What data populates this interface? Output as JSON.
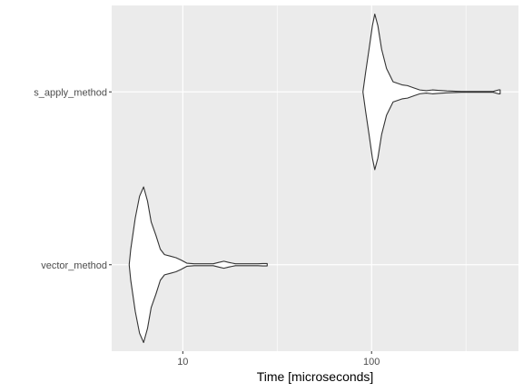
{
  "chart_data": {
    "type": "violin",
    "orientation": "horizontal",
    "xlabel": "Time [microseconds]",
    "ylabel": "",
    "x_scale": "log10",
    "xlim": [
      4.2,
      600
    ],
    "x_ticks": [
      {
        "value": 10,
        "label": "10"
      },
      {
        "value": 100,
        "label": "100"
      }
    ],
    "x_minor_ticks": [
      3.1623,
      31.623,
      316.23
    ],
    "categories": [
      "vector_method",
      "s_apply_method"
    ],
    "grid": true,
    "colors": {
      "panel": "#ebebeb",
      "grid": "#ffffff",
      "violin_fill": "#ffffff",
      "violin_stroke": "#333333"
    },
    "violins": [
      {
        "category": "vector_method",
        "min": 5.2,
        "max": 28,
        "density": [
          [
            5.2,
            0.0
          ],
          [
            5.3,
            0.2
          ],
          [
            5.6,
            0.6
          ],
          [
            5.9,
            0.88
          ],
          [
            6.2,
            1.0
          ],
          [
            6.5,
            0.82
          ],
          [
            6.8,
            0.55
          ],
          [
            7.2,
            0.38
          ],
          [
            7.6,
            0.2
          ],
          [
            8.0,
            0.13
          ],
          [
            8.6,
            0.11
          ],
          [
            9.2,
            0.09
          ],
          [
            9.8,
            0.06
          ],
          [
            10.5,
            0.02
          ],
          [
            11.5,
            0.012
          ],
          [
            13.0,
            0.012
          ],
          [
            14.5,
            0.012
          ],
          [
            15.5,
            0.03
          ],
          [
            16.5,
            0.045
          ],
          [
            17.5,
            0.03
          ],
          [
            19.0,
            0.012
          ],
          [
            22.0,
            0.012
          ],
          [
            25.0,
            0.012
          ],
          [
            26.5,
            0.015
          ],
          [
            28.0,
            0.015
          ]
        ]
      },
      {
        "category": "s_apply_method",
        "min": 90,
        "max": 480,
        "density": [
          [
            90,
            0.0
          ],
          [
            93,
            0.25
          ],
          [
            97,
            0.55
          ],
          [
            101,
            0.85
          ],
          [
            104,
            1.0
          ],
          [
            108,
            0.85
          ],
          [
            113,
            0.55
          ],
          [
            120,
            0.3
          ],
          [
            130,
            0.13
          ],
          [
            145,
            0.09
          ],
          [
            155,
            0.08
          ],
          [
            168,
            0.05
          ],
          [
            180,
            0.025
          ],
          [
            195,
            0.015
          ],
          [
            210,
            0.025
          ],
          [
            225,
            0.02
          ],
          [
            250,
            0.012
          ],
          [
            300,
            0.005
          ],
          [
            380,
            0.005
          ],
          [
            440,
            0.005
          ],
          [
            470,
            0.025
          ],
          [
            480,
            0.025
          ]
        ]
      }
    ]
  }
}
